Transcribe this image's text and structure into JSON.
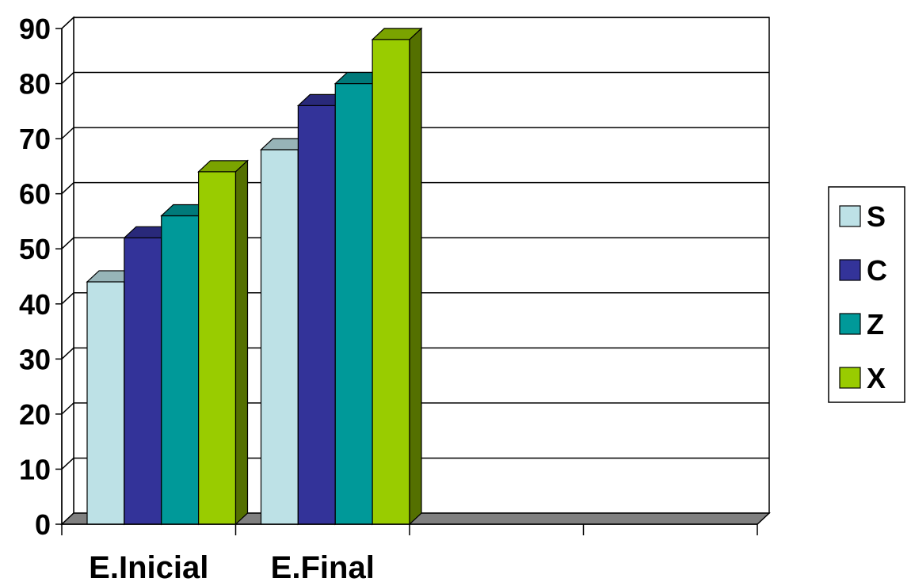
{
  "chart_data": {
    "type": "bar",
    "categories": [
      "E.Inicial",
      "E.Final",
      "",
      ""
    ],
    "series": [
      {
        "name": "S",
        "values": [
          44,
          68,
          null,
          null
        ],
        "color": "#bde1e6"
      },
      {
        "name": "C",
        "values": [
          52,
          76,
          null,
          null
        ],
        "color": "#333399"
      },
      {
        "name": "Z",
        "values": [
          56,
          80,
          null,
          null
        ],
        "color": "#009999"
      },
      {
        "name": "X",
        "values": [
          64,
          88,
          null,
          null
        ],
        "color": "#99cc00"
      }
    ],
    "ylim": [
      0,
      90
    ],
    "yticks": [
      "0",
      "10",
      "20",
      "30",
      "40",
      "50",
      "60",
      "70",
      "80",
      "90"
    ],
    "grid": true,
    "legend": "right",
    "three_d": true
  }
}
